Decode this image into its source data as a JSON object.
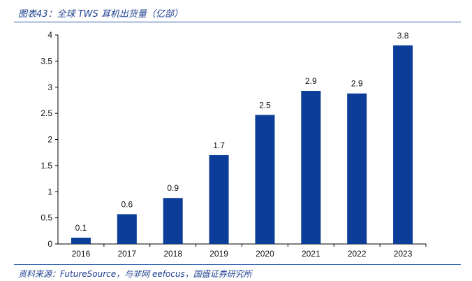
{
  "header": {
    "title": "图表43：全球 TWS 耳机出货量（亿部）"
  },
  "footer": {
    "source": "资料来源：FutureSource，与非网 eefocus，国盛证券研究所"
  },
  "colors": {
    "bar": "#0b3d99",
    "rule": "#2a5ba8",
    "text": "#1f3f8f"
  },
  "chart_data": {
    "type": "bar",
    "title": "",
    "xlabel": "",
    "ylabel": "",
    "categories": [
      "2016",
      "2017",
      "2018",
      "2019",
      "2020",
      "2021",
      "2022",
      "2023"
    ],
    "values": [
      0.12,
      0.57,
      0.88,
      1.7,
      2.47,
      2.93,
      2.88,
      3.8
    ],
    "data_labels": [
      "0.1",
      "0.6",
      "0.9",
      "1.7",
      "2.5",
      "2.9",
      "2.9",
      "3.8"
    ],
    "y_ticks": [
      "0",
      "0.5",
      "1",
      "1.5",
      "2",
      "2.5",
      "3",
      "3.5",
      "4"
    ],
    "ylim": [
      0,
      4
    ],
    "grid": false,
    "legend": "none"
  }
}
